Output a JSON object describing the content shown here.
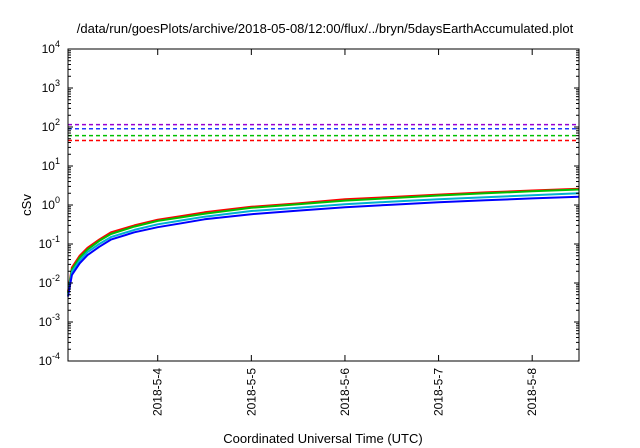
{
  "chart_data": {
    "type": "line",
    "title": "/data/run/goesPlots/archive/2018-05-08/12:00/flux/../bryn/5daysEarthAccumulated.plot",
    "xlabel": "Coordinated Universal Time (UTC)",
    "ylabel": "cSv",
    "y_scale": "log",
    "ylim": [
      0.0001,
      10000
    ],
    "xlim": [
      "2018-05-03 01:00",
      "2018-05-08 12:00"
    ],
    "y_ticks": [
      {
        "value": 0.0001,
        "base": "10",
        "exp": "-4"
      },
      {
        "value": 0.001,
        "base": "10",
        "exp": "-3"
      },
      {
        "value": 0.01,
        "base": "10",
        "exp": "-2"
      },
      {
        "value": 0.1,
        "base": "10",
        "exp": "-1"
      },
      {
        "value": 1,
        "base": "10",
        "exp": "0"
      },
      {
        "value": 10,
        "base": "10",
        "exp": "1"
      },
      {
        "value": 100,
        "base": "10",
        "exp": "2"
      },
      {
        "value": 1000,
        "base": "10",
        "exp": "3"
      },
      {
        "value": 10000,
        "base": "10",
        "exp": "4"
      }
    ],
    "x_ticks": [
      {
        "value": "2018-05-04 00:00",
        "label": "2018-5-4"
      },
      {
        "value": "2018-05-05 00:00",
        "label": "2018-5-5"
      },
      {
        "value": "2018-05-06 00:00",
        "label": "2018-5-6"
      },
      {
        "value": "2018-05-07 00:00",
        "label": "2018-5-7"
      },
      {
        "value": "2018-05-08 00:00",
        "label": "2018-5-8"
      }
    ],
    "grid": false,
    "legend": "none",
    "reference_lines": [
      {
        "y": 115,
        "color": "#9400d3"
      },
      {
        "y": 90,
        "color": "#1e3cff"
      },
      {
        "y": 60,
        "color": "#00c000"
      },
      {
        "y": 45,
        "color": "#ff0000"
      }
    ],
    "x": [
      "2018-05-03 01:00",
      "2018-05-03 02:00",
      "2018-05-03 04:00",
      "2018-05-03 06:00",
      "2018-05-03 09:00",
      "2018-05-03 12:00",
      "2018-05-03 18:00",
      "2018-05-04 00:00",
      "2018-05-04 06:00",
      "2018-05-04 12:00",
      "2018-05-05 00:00",
      "2018-05-05 12:00",
      "2018-05-06 00:00",
      "2018-05-06 12:00",
      "2018-05-07 00:00",
      "2018-05-07 12:00",
      "2018-05-08 00:00",
      "2018-05-08 12:00"
    ],
    "series": [
      {
        "color": "#ff0000",
        "values": [
          0.006,
          0.025,
          0.05,
          0.08,
          0.13,
          0.2,
          0.3,
          0.42,
          0.52,
          0.65,
          0.9,
          1.1,
          1.4,
          1.6,
          1.85,
          2.1,
          2.35,
          2.6
        ]
      },
      {
        "color": "#00c000",
        "values": [
          0.0055,
          0.022,
          0.045,
          0.072,
          0.12,
          0.18,
          0.28,
          0.39,
          0.48,
          0.6,
          0.85,
          1.05,
          1.3,
          1.5,
          1.75,
          2.0,
          2.25,
          2.5
        ]
      },
      {
        "color": "#00b0d0",
        "values": [
          0.005,
          0.019,
          0.038,
          0.062,
          0.1,
          0.15,
          0.23,
          0.32,
          0.4,
          0.5,
          0.7,
          0.85,
          1.05,
          1.22,
          1.4,
          1.58,
          1.78,
          2.0
        ]
      },
      {
        "color": "#0000ff",
        "values": [
          0.0045,
          0.016,
          0.032,
          0.052,
          0.085,
          0.13,
          0.2,
          0.27,
          0.34,
          0.43,
          0.58,
          0.72,
          0.88,
          1.02,
          1.17,
          1.32,
          1.48,
          1.62
        ]
      }
    ]
  }
}
